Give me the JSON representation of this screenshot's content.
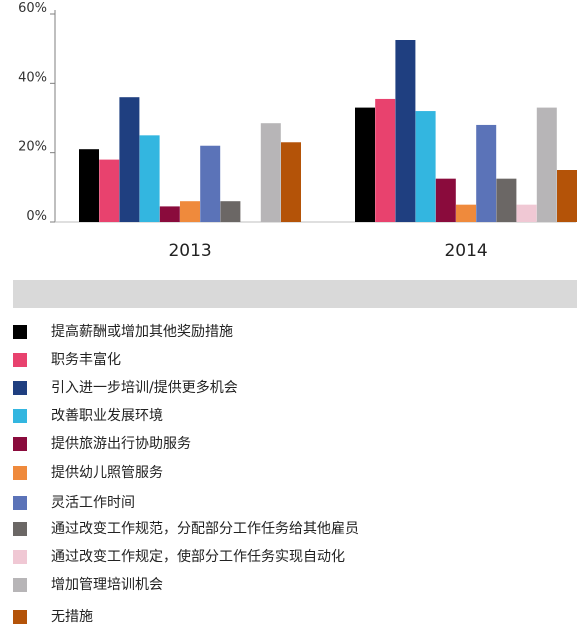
{
  "chart_data": {
    "type": "bar",
    "categories": [
      "2013",
      "2014"
    ],
    "y_tick_labels": [
      "0%",
      "20%",
      "40%",
      "60%"
    ],
    "ylim": [
      0,
      60
    ],
    "grid": false,
    "legend_position": "bottom",
    "series": [
      {
        "name": "提高薪酬或增加其他奖励措施",
        "color": "#000000",
        "values": [
          21,
          33
        ]
      },
      {
        "name": "职务丰富化",
        "color": "#e8426e",
        "values": [
          18,
          35.5
        ]
      },
      {
        "name": "引入进一步培训/提供更多机会",
        "color": "#1f3f80",
        "values": [
          36,
          52.5
        ]
      },
      {
        "name": "改善职业发展环境",
        "color": "#33b6e0",
        "values": [
          25,
          32
        ]
      },
      {
        "name": "提供旅游出行协助服务",
        "color": "#8a0b3c",
        "values": [
          4.5,
          12.5
        ]
      },
      {
        "name": "提供幼儿照管服务",
        "color": "#ef8a3c",
        "values": [
          6,
          5
        ]
      },
      {
        "name": "灵活工作时间",
        "color": "#5b73b8",
        "values": [
          22,
          28
        ]
      },
      {
        "name": "通过改变工作规范，分配部分工作任务给其他雇员",
        "color": "#6b6765",
        "values": [
          6,
          12.5
        ]
      },
      {
        "name": "通过改变工作规定，使部分工作任务实现自动化",
        "color": "#f0c8d4",
        "values": [
          0,
          5
        ]
      },
      {
        "name": "增加管理培训机会",
        "color": "#b7b5b7",
        "values": [
          28.5,
          33
        ]
      },
      {
        "name": "无措施",
        "color": "#b45308",
        "values": [
          23,
          15
        ]
      }
    ]
  }
}
